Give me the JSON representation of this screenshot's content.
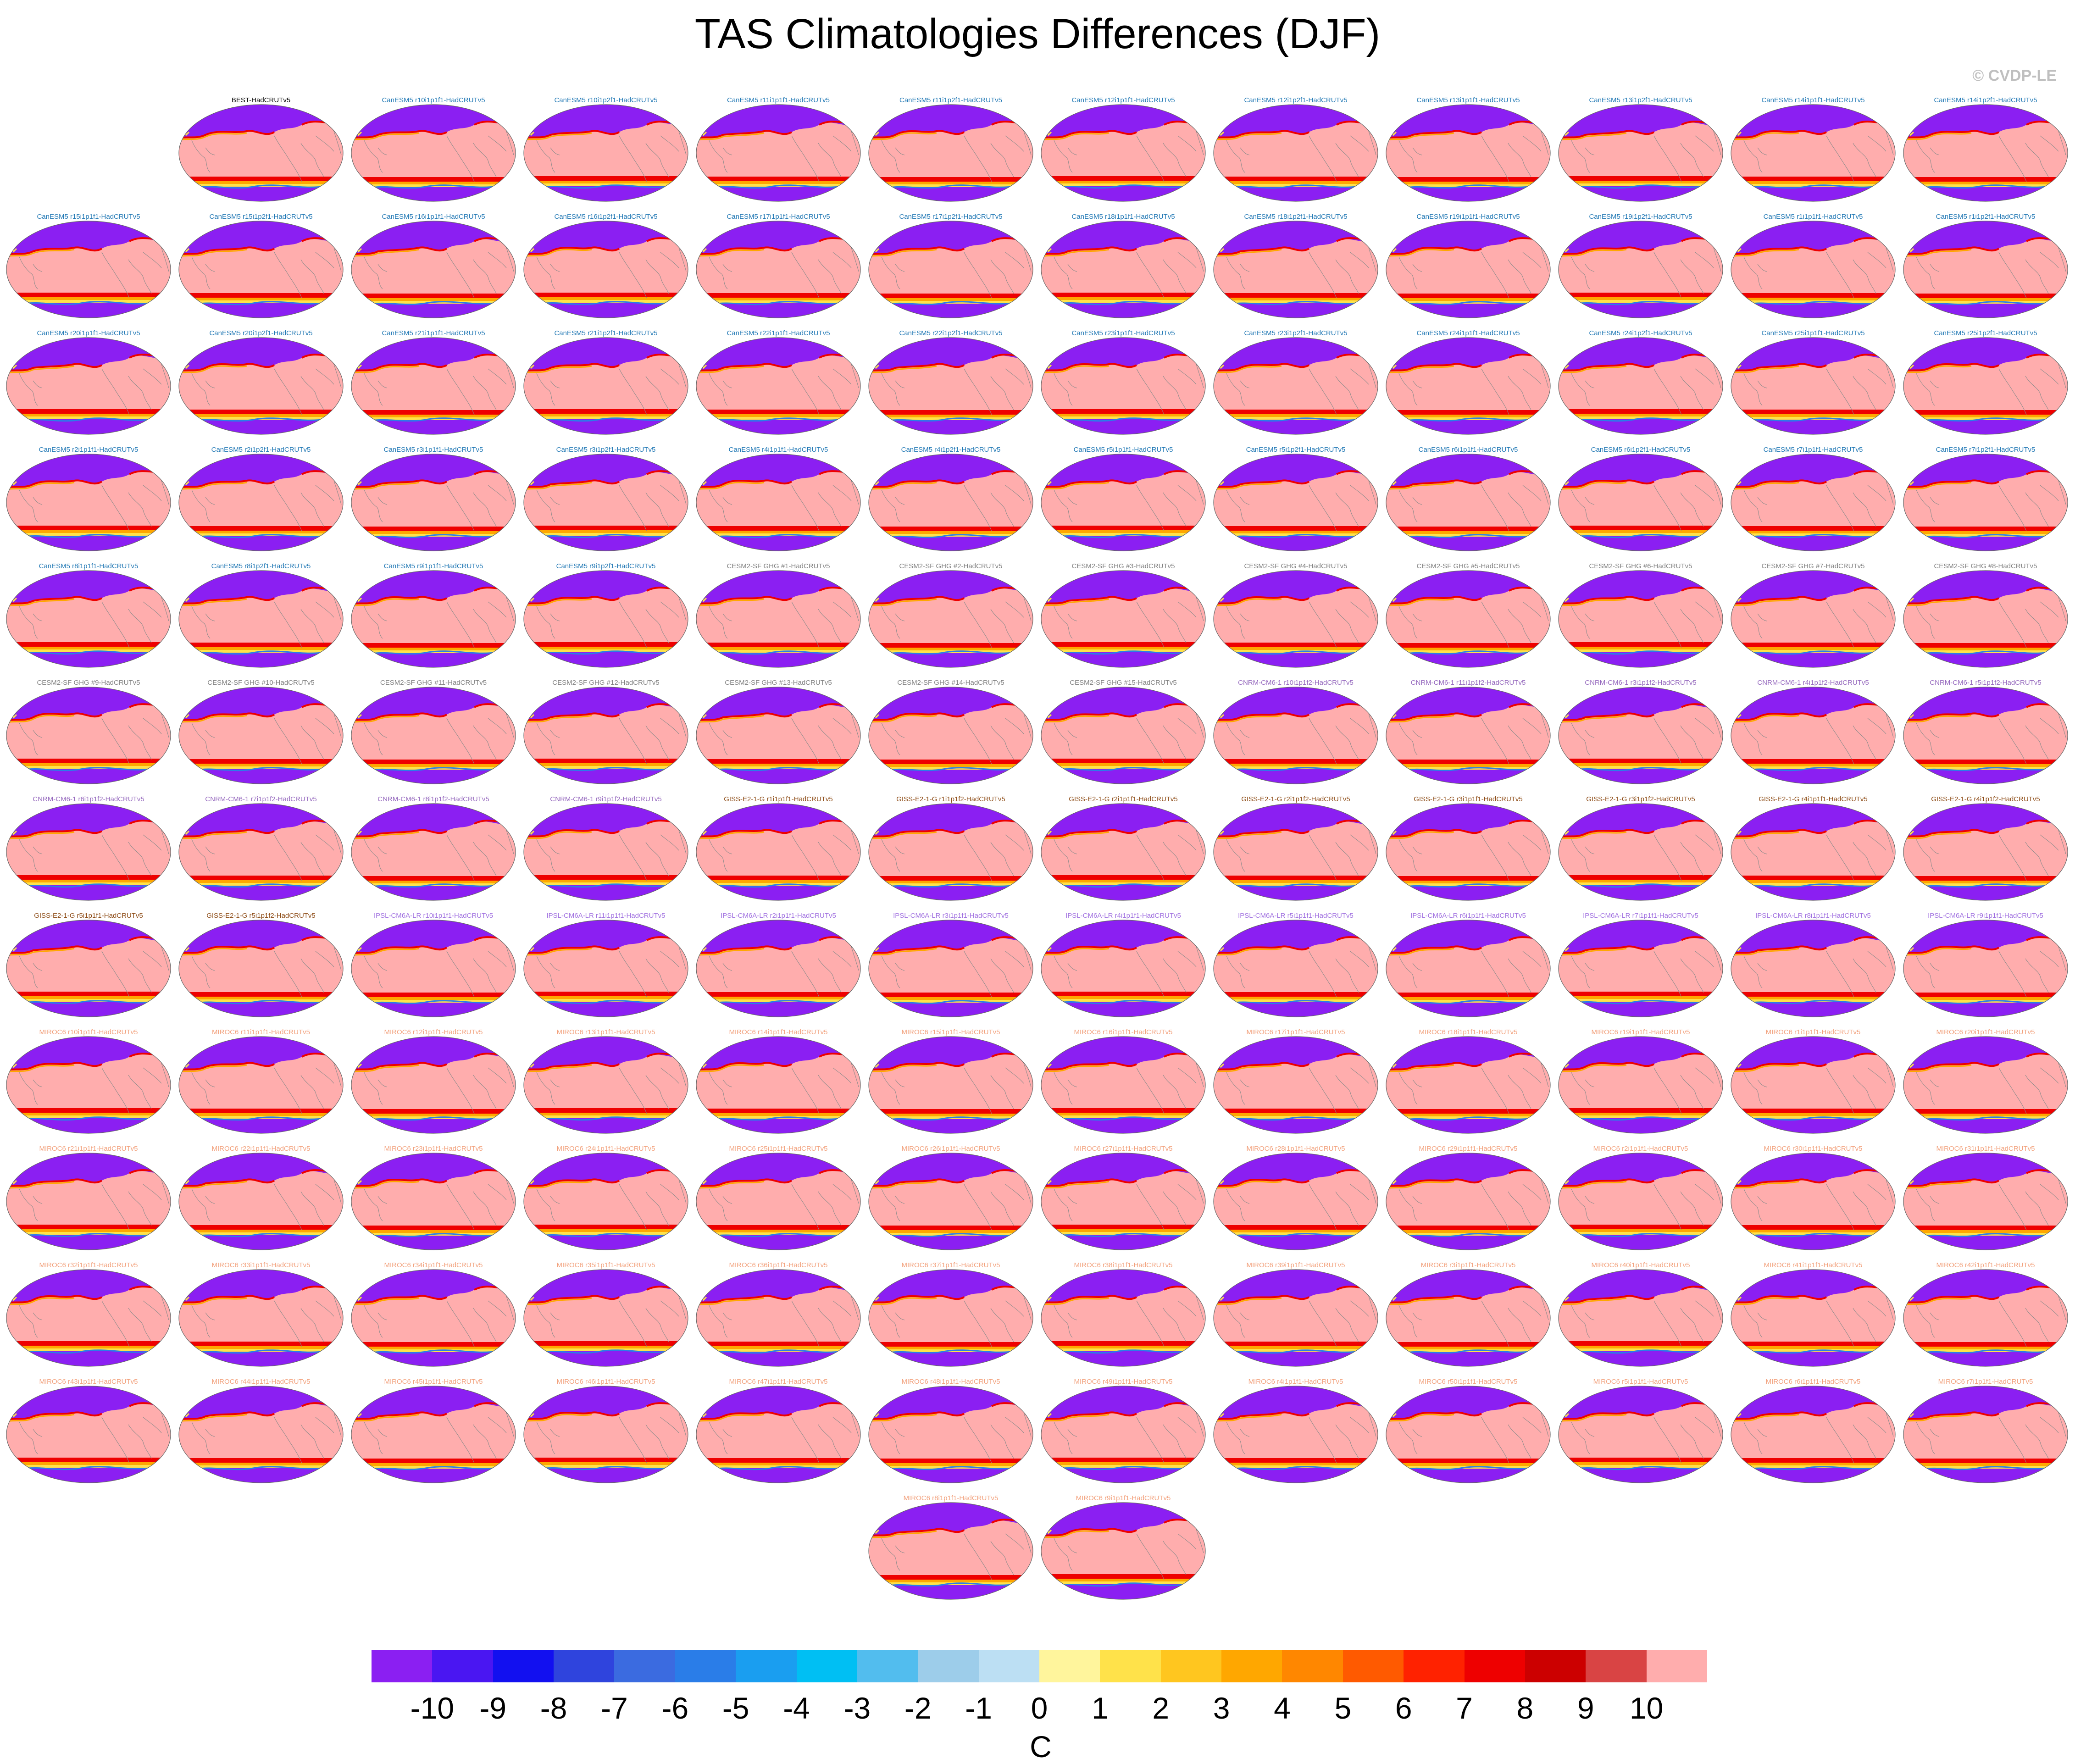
{
  "title": "TAS Climatologies Differences (DJF)",
  "credit": "© CVDP-LE",
  "chart_data": {
    "type": "map-panels",
    "season": "DJF",
    "variable": "TAS",
    "layout": {
      "columns": 12,
      "rows": 13
    },
    "panels": [
      "",
      "BEST-HadCRUTv5",
      "CanESM5 r10i1p1f1-HadCRUTv5",
      "CanESM5 r10i1p2f1-HadCRUTv5",
      "CanESM5 r11i1p1f1-HadCRUTv5",
      "CanESM5 r11i1p2f1-HadCRUTv5",
      "CanESM5 r12i1p1f1-HadCRUTv5",
      "CanESM5 r12i1p2f1-HadCRUTv5",
      "CanESM5 r13i1p1f1-HadCRUTv5",
      "CanESM5 r13i1p2f1-HadCRUTv5",
      "CanESM5 r14i1p1f1-HadCRUTv5",
      "CanESM5 r14i1p2f1-HadCRUTv5",
      "CanESM5 r15i1p1f1-HadCRUTv5",
      "CanESM5 r15i1p2f1-HadCRUTv5",
      "CanESM5 r16i1p1f1-HadCRUTv5",
      "CanESM5 r16i1p2f1-HadCRUTv5",
      "CanESM5 r17i1p1f1-HadCRUTv5",
      "CanESM5 r17i1p2f1-HadCRUTv5",
      "CanESM5 r18i1p1f1-HadCRUTv5",
      "CanESM5 r18i1p2f1-HadCRUTv5",
      "CanESM5 r19i1p1f1-HadCRUTv5",
      "CanESM5 r19i1p2f1-HadCRUTv5",
      "CanESM5 r1i1p1f1-HadCRUTv5",
      "CanESM5 r1i1p2f1-HadCRUTv5",
      "CanESM5 r20i1p1f1-HadCRUTv5",
      "CanESM5 r20i1p2f1-HadCRUTv5",
      "CanESM5 r21i1p1f1-HadCRUTv5",
      "CanESM5 r21i1p2f1-HadCRUTv5",
      "CanESM5 r22i1p1f1-HadCRUTv5",
      "CanESM5 r22i1p2f1-HadCRUTv5",
      "CanESM5 r23i1p1f1-HadCRUTv5",
      "CanESM5 r23i1p2f1-HadCRUTv5",
      "CanESM5 r24i1p1f1-HadCRUTv5",
      "CanESM5 r24i1p2f1-HadCRUTv5",
      "CanESM5 r25i1p1f1-HadCRUTv5",
      "CanESM5 r25i1p2f1-HadCRUTv5",
      "CanESM5 r2i1p1f1-HadCRUTv5",
      "CanESM5 r2i1p2f1-HadCRUTv5",
      "CanESM5 r3i1p1f1-HadCRUTv5",
      "CanESM5 r3i1p2f1-HadCRUTv5",
      "CanESM5 r4i1p1f1-HadCRUTv5",
      "CanESM5 r4i1p2f1-HadCRUTv5",
      "CanESM5 r5i1p1f1-HadCRUTv5",
      "CanESM5 r5i1p2f1-HadCRUTv5",
      "CanESM5 r6i1p1f1-HadCRUTv5",
      "CanESM5 r6i1p2f1-HadCRUTv5",
      "CanESM5 r7i1p1f1-HadCRUTv5",
      "CanESM5 r7i1p2f1-HadCRUTv5",
      "CanESM5 r8i1p1f1-HadCRUTv5",
      "CanESM5 r8i1p2f1-HadCRUTv5",
      "CanESM5 r9i1p1f1-HadCRUTv5",
      "CanESM5 r9i1p2f1-HadCRUTv5",
      "CESM2-SF GHG #1-HadCRUTv5",
      "CESM2-SF GHG #2-HadCRUTv5",
      "CESM2-SF GHG #3-HadCRUTv5",
      "CESM2-SF GHG #4-HadCRUTv5",
      "CESM2-SF GHG #5-HadCRUTv5",
      "CESM2-SF GHG #6-HadCRUTv5",
      "CESM2-SF GHG #7-HadCRUTv5",
      "CESM2-SF GHG #8-HadCRUTv5",
      "CESM2-SF GHG #9-HadCRUTv5",
      "CESM2-SF GHG #10-HadCRUTv5",
      "CESM2-SF GHG #11-HadCRUTv5",
      "CESM2-SF GHG #12-HadCRUTv5",
      "CESM2-SF GHG #13-HadCRUTv5",
      "CESM2-SF GHG #14-HadCRUTv5",
      "CESM2-SF GHG #15-HadCRUTv5",
      "CNRM-CM6-1 r10i1p1f2-HadCRUTv5",
      "CNRM-CM6-1 r11i1p1f2-HadCRUTv5",
      "CNRM-CM6-1 r3i1p1f2-HadCRUTv5",
      "CNRM-CM6-1 r4i1p1f2-HadCRUTv5",
      "CNRM-CM6-1 r5i1p1f2-HadCRUTv5",
      "CNRM-CM6-1 r6i1p1f2-HadCRUTv5",
      "CNRM-CM6-1 r7i1p1f2-HadCRUTv5",
      "CNRM-CM6-1 r8i1p1f2-HadCRUTv5",
      "CNRM-CM6-1 r9i1p1f2-HadCRUTv5",
      "GISS-E2-1-G r1i1p1f1-HadCRUTv5",
      "GISS-E2-1-G r1i1p1f2-HadCRUTv5",
      "GISS-E2-1-G r2i1p1f1-HadCRUTv5",
      "GISS-E2-1-G r2i1p1f2-HadCRUTv5",
      "GISS-E2-1-G r3i1p1f1-HadCRUTv5",
      "GISS-E2-1-G r3i1p1f2-HadCRUTv5",
      "GISS-E2-1-G r4i1p1f1-HadCRUTv5",
      "GISS-E2-1-G r4i1p1f2-HadCRUTv5",
      "GISS-E2-1-G r5i1p1f1-HadCRUTv5",
      "GISS-E2-1-G r5i1p1f2-HadCRUTv5",
      "IPSL-CM6A-LR r10i1p1f1-HadCRUTv5",
      "IPSL-CM6A-LR r11i1p1f1-HadCRUTv5",
      "IPSL-CM6A-LR r2i1p1f1-HadCRUTv5",
      "IPSL-CM6A-LR r3i1p1f1-HadCRUTv5",
      "IPSL-CM6A-LR r4i1p1f1-HadCRUTv5",
      "IPSL-CM6A-LR r5i1p1f1-HadCRUTv5",
      "IPSL-CM6A-LR r6i1p1f1-HadCRUTv5",
      "IPSL-CM6A-LR r7i1p1f1-HadCRUTv5",
      "IPSL-CM6A-LR r8i1p1f1-HadCRUTv5",
      "IPSL-CM6A-LR r9i1p1f1-HadCRUTv5",
      "MIROC6 r10i1p1f1-HadCRUTv5",
      "MIROC6 r11i1p1f1-HadCRUTv5",
      "MIROC6 r12i1p1f1-HadCRUTv5",
      "MIROC6 r13i1p1f1-HadCRUTv5",
      "MIROC6 r14i1p1f1-HadCRUTv5",
      "MIROC6 r15i1p1f1-HadCRUTv5",
      "MIROC6 r16i1p1f1-HadCRUTv5",
      "MIROC6 r17i1p1f1-HadCRUTv5",
      "MIROC6 r18i1p1f1-HadCRUTv5",
      "MIROC6 r19i1p1f1-HadCRUTv5",
      "MIROC6 r1i1p1f1-HadCRUTv5",
      "MIROC6 r20i1p1f1-HadCRUTv5",
      "MIROC6 r21i1p1f1-HadCRUTv5",
      "MIROC6 r22i1p1f1-HadCRUTv5",
      "MIROC6 r23i1p1f1-HadCRUTv5",
      "MIROC6 r24i1p1f1-HadCRUTv5",
      "MIROC6 r25i1p1f1-HadCRUTv5",
      "MIROC6 r26i1p1f1-HadCRUTv5",
      "MIROC6 r27i1p1f1-HadCRUTv5",
      "MIROC6 r28i1p1f1-HadCRUTv5",
      "MIROC6 r29i1p1f1-HadCRUTv5",
      "MIROC6 r2i1p1f1-HadCRUTv5",
      "MIROC6 r30i1p1f1-HadCRUTv5",
      "MIROC6 r31i1p1f1-HadCRUTv5",
      "MIROC6 r32i1p1f1-HadCRUTv5",
      "MIROC6 r33i1p1f1-HadCRUTv5",
      "MIROC6 r34i1p1f1-HadCRUTv5",
      "MIROC6 r35i1p1f1-HadCRUTv5",
      "MIROC6 r36i1p1f1-HadCRUTv5",
      "MIROC6 r37i1p1f1-HadCRUTv5",
      "MIROC6 r38i1p1f1-HadCRUTv5",
      "MIROC6 r39i1p1f1-HadCRUTv5",
      "MIROC6 r3i1p1f1-HadCRUTv5",
      "MIROC6 r40i1p1f1-HadCRUTv5",
      "MIROC6 r41i1p1f1-HadCRUTv5",
      "MIROC6 r42i1p1f1-HadCRUTv5",
      "MIROC6 r43i1p1f1-HadCRUTv5",
      "MIROC6 r44i1p1f1-HadCRUTv5",
      "MIROC6 r45i1p1f1-HadCRUTv5",
      "MIROC6 r46i1p1f1-HadCRUTv5",
      "MIROC6 r47i1p1f1-HadCRUTv5",
      "MIROC6 r48i1p1f1-HadCRUTv5",
      "MIROC6 r49i1p1f1-HadCRUTv5",
      "MIROC6 r4i1p1f1-HadCRUTv5",
      "MIROC6 r50i1p1f1-HadCRUTv5",
      "MIROC6 r5i1p1f1-HadCRUTv5",
      "MIROC6 r6i1p1f1-HadCRUTv5",
      "MIROC6 r7i1p1f1-HadCRUTv5",
      "",
      "",
      "",
      "",
      "",
      "MIROC6 r8i1p1f1-HadCRUTv5",
      "MIROC6 r9i1p1f1-HadCRUTv5",
      "",
      "",
      "",
      "",
      ""
    ],
    "title_colors": {
      "BEST": "#000000",
      "CanESM5": "#1f77b4",
      "CESM2": "#7f7f7f",
      "CNRM": "#9467bd",
      "GISS": "#8c4a14",
      "IPSL": "#a070e0",
      "MIROC6": "#f2a07b"
    },
    "colorbar": {
      "unit": "C",
      "tick_labels": [
        "-10",
        "-9",
        "-8",
        "-7",
        "-6",
        "-5",
        "-4",
        "-3",
        "-2",
        "-1",
        "0",
        "1",
        "2",
        "3",
        "4",
        "5",
        "6",
        "7",
        "8",
        "9",
        "10"
      ],
      "colors": [
        "#8b1ff2",
        "#4a16f2",
        "#1210f0",
        "#2f44dd",
        "#3b6be0",
        "#2a7de8",
        "#1a9ef0",
        "#00bff3",
        "#52bdee",
        "#9dcdea",
        "#bcdff3",
        "#fff59c",
        "#ffe24a",
        "#ffc61f",
        "#ffa700",
        "#ff8700",
        "#ff5a00",
        "#ff2200",
        "#ee0000",
        "#cc0000",
        "#d94444",
        "#ffadad"
      ]
    },
    "map_colors": {
      "land_cold": "#8b1ff2",
      "ocean_warm": "#ffadad",
      "front_red": "#ee0000",
      "front_orange": "#ffa700",
      "front_yellow": "#ffe24a",
      "coast": "#8a8a8a"
    }
  }
}
